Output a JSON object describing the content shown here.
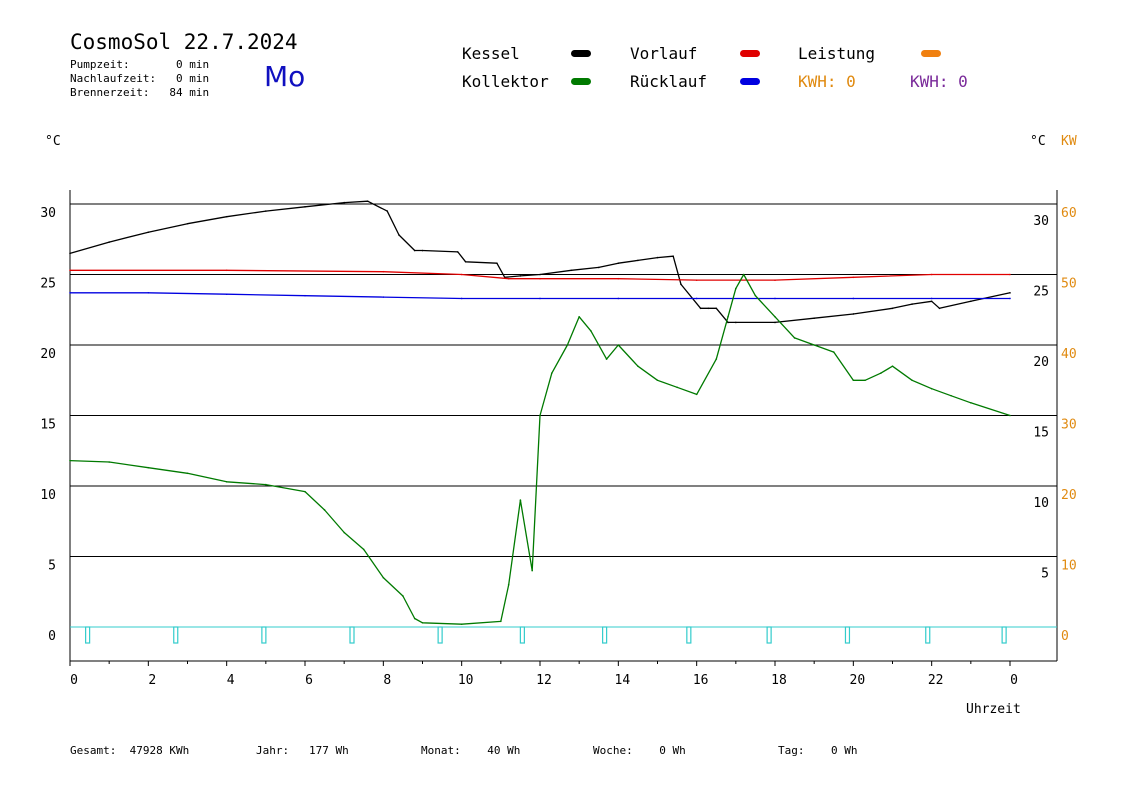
{
  "header": {
    "title": "CosmoSol 22.7.2024",
    "day": "Mo",
    "pumpzeit": "Pumpzeit:       0 min",
    "nachlaufzeit": "Nachlaufzeit:   0 min",
    "brennerzeit": "Brennerzeit:   84 min"
  },
  "legend": {
    "kessel": "Kessel",
    "kollektor": "Kollektor",
    "vorlauf": "Vorlauf",
    "ruecklauf": "Rücklauf",
    "leistung": "Leistung",
    "kwh1": "KWH: 0",
    "kwh2": "KWH: 0"
  },
  "axes": {
    "left_unit": "°C",
    "right_unit": "°C",
    "right_unit2": "KW",
    "xlabel": "Uhrzeit"
  },
  "footer": {
    "gesamt": "Gesamt:  47928 KWh",
    "jahr": "Jahr:   177 Wh",
    "monat": "Monat:    40 Wh",
    "woche": "Woche:    0 Wh",
    "tag": "Tag:    0 Wh"
  },
  "colors": {
    "kessel": "#000000",
    "kollektor": "#007a00",
    "vorlauf": "#e00000",
    "ruecklauf": "#0000e0",
    "leistung": "#f08010",
    "pump": "#33cccc"
  },
  "chart_data": {
    "type": "line",
    "x_ticks": [
      "0",
      "2",
      "4",
      "6",
      "8",
      "10",
      "12",
      "14",
      "16",
      "18",
      "20",
      "22",
      "0"
    ],
    "y_left_ticks": [
      "0",
      "5",
      "10",
      "15",
      "20",
      "25",
      "30"
    ],
    "y_right_ticks": [
      "5",
      "10",
      "15",
      "20",
      "25",
      "30"
    ],
    "y_right2_ticks": [
      "0",
      "10",
      "20",
      "30",
      "40",
      "50",
      "60"
    ],
    "xlim": [
      0,
      24
    ],
    "ylim": [
      -2.3,
      31
    ],
    "grid": true,
    "series": [
      {
        "name": "Kessel",
        "color": "#000000",
        "x": [
          0,
          1,
          2,
          3,
          4,
          5,
          6,
          7,
          7.6,
          8.1,
          8.4,
          8.8,
          9,
          9.9,
          10.1,
          10.9,
          11.1,
          11.5,
          12,
          12.8,
          13.5,
          14,
          14.5,
          15,
          15.4,
          15.6,
          16.1,
          16.3,
          16.5,
          16.8,
          17,
          18,
          19,
          20,
          21,
          21.5,
          22,
          22.2,
          23,
          24
        ],
        "y": [
          26.5,
          27.3,
          28,
          28.6,
          29.1,
          29.5,
          29.8,
          30.1,
          30.2,
          29.5,
          27.8,
          26.7,
          26.7,
          26.6,
          25.9,
          25.8,
          24.8,
          24.9,
          25,
          25.3,
          25.5,
          25.8,
          26,
          26.2,
          26.3,
          24.3,
          22.6,
          22.6,
          22.6,
          21.6,
          21.6,
          21.6,
          21.9,
          22.2,
          22.6,
          22.9,
          23.1,
          22.6,
          23.1,
          23.7
        ]
      },
      {
        "name": "Vorlauf",
        "color": "#e00000",
        "x": [
          0,
          4,
          8,
          10,
          11.2,
          12,
          14,
          16,
          18,
          20,
          22,
          24
        ],
        "y": [
          25.3,
          25.3,
          25.2,
          25.0,
          24.7,
          24.7,
          24.7,
          24.6,
          24.6,
          24.8,
          25.0,
          25.0
        ]
      },
      {
        "name": "Rücklauf",
        "color": "#0000e0",
        "x": [
          0,
          2,
          4,
          6,
          8,
          10,
          12,
          14,
          16,
          18,
          20,
          22,
          24
        ],
        "y": [
          23.7,
          23.7,
          23.6,
          23.5,
          23.4,
          23.3,
          23.3,
          23.3,
          23.3,
          23.3,
          23.3,
          23.3,
          23.3
        ]
      },
      {
        "name": "Kollektor",
        "color": "#007a00",
        "x": [
          0,
          1,
          2,
          3,
          4,
          5,
          6,
          6.5,
          7,
          7.5,
          8,
          8.5,
          8.8,
          9,
          10,
          11,
          11.2,
          11.5,
          11.8,
          12,
          12.3,
          12.7,
          13,
          13.3,
          13.7,
          14,
          14.5,
          15,
          15.5,
          16,
          16.5,
          16.8,
          17,
          17.2,
          17.5,
          18,
          18.5,
          19,
          19.5,
          20,
          20.3,
          20.7,
          21,
          21.5,
          22,
          22.5,
          23,
          24
        ],
        "y": [
          11.8,
          11.7,
          11.3,
          10.9,
          10.3,
          10.1,
          9.6,
          8.3,
          6.7,
          5.5,
          3.5,
          2.2,
          0.6,
          0.3,
          0.2,
          0.4,
          3,
          9,
          4,
          15,
          18,
          20,
          22,
          21,
          19,
          20,
          18.5,
          17.5,
          17,
          16.5,
          19,
          22,
          24,
          25,
          23.5,
          22,
          20.5,
          20,
          19.5,
          17.5,
          17.5,
          18,
          18.5,
          17.5,
          16.9,
          16.4,
          15.9,
          15.0
        ]
      }
    ],
    "pump_marks_x": [
      0.45,
      2.7,
      4.95,
      7.2,
      9.45,
      11.55,
      13.65,
      15.8,
      17.85,
      19.85,
      21.9,
      23.85
    ]
  }
}
